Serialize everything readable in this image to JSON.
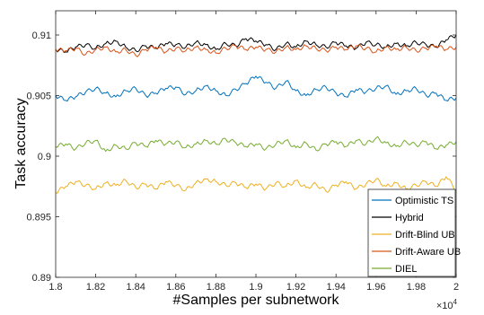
{
  "chart_data": {
    "type": "line",
    "xlabel": "#Samples per subnetwork",
    "ylabel": "Task accuracy",
    "x_multiplier_label": "×10",
    "x_multiplier_exp": "4",
    "xlim": [
      1.8,
      2.0
    ],
    "ylim": [
      0.89,
      0.912
    ],
    "xticks": [
      1.8,
      1.82,
      1.84,
      1.86,
      1.88,
      1.9,
      1.92,
      1.94,
      1.96,
      1.98,
      2.0
    ],
    "xtick_labels": [
      "1.8",
      "1.82",
      "1.84",
      "1.86",
      "1.88",
      "1.9",
      "1.92",
      "1.94",
      "1.96",
      "1.98",
      "2"
    ],
    "yticks": [
      0.89,
      0.895,
      0.9,
      0.905,
      0.91
    ],
    "ytick_labels": [
      "0.89",
      "0.895",
      "0.9",
      "0.905",
      "0.91"
    ],
    "grid": false,
    "legend_position": "bottom-right",
    "x": [
      1.8,
      1.805,
      1.81,
      1.815,
      1.82,
      1.825,
      1.83,
      1.835,
      1.84,
      1.845,
      1.85,
      1.855,
      1.86,
      1.865,
      1.87,
      1.875,
      1.88,
      1.885,
      1.89,
      1.895,
      1.9,
      1.905,
      1.91,
      1.915,
      1.92,
      1.925,
      1.93,
      1.935,
      1.94,
      1.945,
      1.95,
      1.955,
      1.96,
      1.965,
      1.97,
      1.975,
      1.98,
      1.985,
      1.99,
      1.995,
      2.0
    ],
    "series": [
      {
        "name": "Optimistic TS",
        "color": "#0072BD",
        "values": [
          0.905,
          0.9046,
          0.9049,
          0.9053,
          0.9056,
          0.9052,
          0.9049,
          0.9054,
          0.9056,
          0.905,
          0.9052,
          0.9056,
          0.9057,
          0.9051,
          0.9054,
          0.9058,
          0.9054,
          0.905,
          0.9055,
          0.906,
          0.9066,
          0.9061,
          0.9056,
          0.9062,
          0.9054,
          0.905,
          0.9055,
          0.9057,
          0.9052,
          0.9049,
          0.9055,
          0.9053,
          0.9056,
          0.9058,
          0.9051,
          0.9054,
          0.9056,
          0.905,
          0.9052,
          0.9046,
          0.9048
        ]
      },
      {
        "name": "Hybrid",
        "color": "#000000",
        "values": [
          0.9088,
          0.9086,
          0.909,
          0.9092,
          0.9089,
          0.9093,
          0.9095,
          0.909,
          0.9087,
          0.9091,
          0.9089,
          0.9093,
          0.9092,
          0.909,
          0.9094,
          0.9092,
          0.9088,
          0.9093,
          0.9091,
          0.9097,
          0.9095,
          0.9092,
          0.9088,
          0.9093,
          0.909,
          0.9095,
          0.9092,
          0.909,
          0.9094,
          0.9091,
          0.9089,
          0.9094,
          0.9092,
          0.909,
          0.9093,
          0.9091,
          0.9094,
          0.9092,
          0.909,
          0.9096,
          0.91
        ]
      },
      {
        "name": "Drift-Blind UB",
        "color": "#EDB120",
        "values": [
          0.897,
          0.8975,
          0.8979,
          0.8976,
          0.8973,
          0.8978,
          0.8976,
          0.898,
          0.8974,
          0.8977,
          0.8973,
          0.8979,
          0.8976,
          0.8972,
          0.8978,
          0.8981,
          0.8979,
          0.8976,
          0.8978,
          0.8974,
          0.8977,
          0.8973,
          0.8978,
          0.8975,
          0.898,
          0.8974,
          0.8977,
          0.8971,
          0.8976,
          0.8979,
          0.8973,
          0.8977,
          0.8981,
          0.8975,
          0.8978,
          0.8973,
          0.8976,
          0.8979,
          0.8975,
          0.8983,
          0.8972
        ]
      },
      {
        "name": "Drift-Aware UB",
        "color": "#D95319",
        "values": [
          0.9088,
          0.9087,
          0.9089,
          0.9084,
          0.9088,
          0.909,
          0.9086,
          0.9088,
          0.9083,
          0.9088,
          0.909,
          0.9086,
          0.9089,
          0.9087,
          0.909,
          0.9088,
          0.9085,
          0.9089,
          0.9091,
          0.9088,
          0.909,
          0.9088,
          0.9086,
          0.909,
          0.9088,
          0.9091,
          0.9089,
          0.9087,
          0.909,
          0.9088,
          0.9091,
          0.9089,
          0.9086,
          0.909,
          0.9088,
          0.909,
          0.9087,
          0.9089,
          0.9091,
          0.9088,
          0.909
        ]
      },
      {
        "name": "DIEL",
        "color": "#77AC30",
        "values": [
          0.9008,
          0.901,
          0.9006,
          0.9011,
          0.9013,
          0.9004,
          0.9009,
          0.9006,
          0.9011,
          0.9008,
          0.9013,
          0.901,
          0.9012,
          0.9007,
          0.901,
          0.9013,
          0.901,
          0.9014,
          0.9011,
          0.9008,
          0.901,
          0.9006,
          0.901,
          0.9013,
          0.9007,
          0.9011,
          0.9005,
          0.901,
          0.9012,
          0.9008,
          0.9013,
          0.901,
          0.9015,
          0.9011,
          0.9008,
          0.9012,
          0.9009,
          0.9012,
          0.9006,
          0.9009,
          0.9012
        ]
      }
    ]
  }
}
